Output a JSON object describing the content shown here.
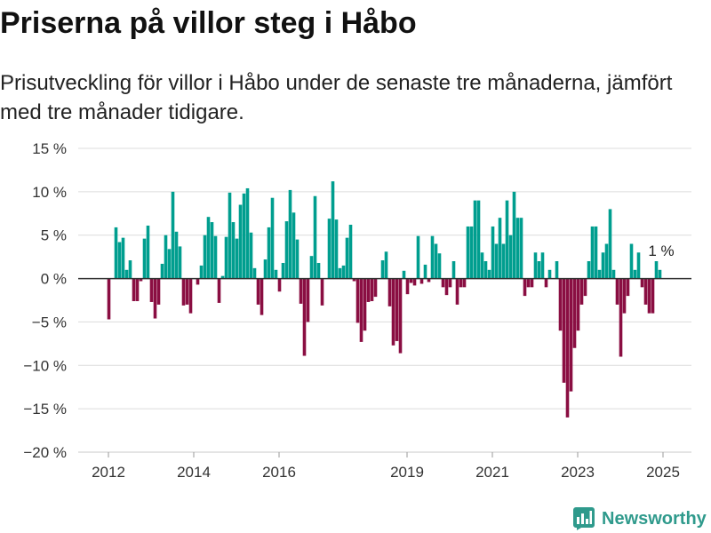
{
  "chart_data": {
    "type": "bar",
    "title": "Priserna på villor steg i Håbo",
    "subtitle": "Prisutveckling för villor i Håbo under de senaste tre månaderna, jämfört med tre månader tidigare.",
    "ylim": [
      -20,
      15
    ],
    "y_tick_values": [
      15,
      10,
      5,
      0,
      -5,
      -10,
      -15,
      -20
    ],
    "y_ticks": [
      "15 %",
      "10 %",
      "5 %",
      "0 %",
      "−5 %",
      "−10 %",
      "−15 %",
      "−20 %"
    ],
    "x_ticks": [
      "2012",
      "2014",
      "2016",
      "2019",
      "2021",
      "2023",
      "2025"
    ],
    "grid": true,
    "colors": {
      "positive": "#009e8f",
      "negative": "#8a0e42"
    },
    "x": [
      "2012-01",
      "2012-02",
      "2012-03",
      "2012-04",
      "2012-05",
      "2012-06",
      "2012-07",
      "2012-08",
      "2012-09",
      "2012-10",
      "2012-11",
      "2012-12",
      "2013-01",
      "2013-02",
      "2013-03",
      "2013-04",
      "2013-05",
      "2013-06",
      "2013-07",
      "2013-08",
      "2013-09",
      "2013-10",
      "2013-11",
      "2013-12",
      "2014-01",
      "2014-02",
      "2014-03",
      "2014-04",
      "2014-05",
      "2014-06",
      "2014-07",
      "2014-08",
      "2014-09",
      "2014-10",
      "2014-11",
      "2014-12",
      "2015-01",
      "2015-02",
      "2015-03",
      "2015-04",
      "2015-05",
      "2015-06",
      "2015-07",
      "2015-08",
      "2015-09",
      "2015-10",
      "2015-11",
      "2015-12",
      "2016-01",
      "2016-02",
      "2016-03",
      "2016-04",
      "2016-05",
      "2016-06",
      "2016-07",
      "2016-08",
      "2016-09",
      "2016-10",
      "2016-11",
      "2016-12",
      "2017-01",
      "2017-02",
      "2017-03",
      "2017-04",
      "2017-05",
      "2017-06",
      "2017-07",
      "2017-08",
      "2017-09",
      "2017-10",
      "2017-11",
      "2017-12",
      "2018-01",
      "2018-02",
      "2018-03",
      "2018-04",
      "2018-05",
      "2018-06",
      "2018-07",
      "2018-08",
      "2018-09",
      "2018-10",
      "2018-11",
      "2018-12",
      "2019-01",
      "2019-02",
      "2019-03",
      "2019-04",
      "2019-05",
      "2019-06",
      "2019-07",
      "2019-08",
      "2019-09",
      "2019-10",
      "2019-11",
      "2019-12",
      "2020-01",
      "2020-02",
      "2020-03",
      "2020-04",
      "2020-05",
      "2020-06",
      "2020-07",
      "2020-08",
      "2020-09",
      "2020-10",
      "2020-11",
      "2020-12",
      "2021-01",
      "2021-02",
      "2021-03",
      "2021-04",
      "2021-05",
      "2021-06",
      "2021-07",
      "2021-08",
      "2021-09",
      "2021-10",
      "2021-11",
      "2021-12",
      "2022-01",
      "2022-02",
      "2022-03",
      "2022-04",
      "2022-05",
      "2022-06",
      "2022-07",
      "2022-08",
      "2022-09",
      "2022-10",
      "2022-11",
      "2022-12",
      "2023-01",
      "2023-02",
      "2023-03",
      "2023-04",
      "2023-05",
      "2023-06",
      "2023-07",
      "2023-08",
      "2023-09",
      "2023-10",
      "2023-11",
      "2023-12",
      "2024-01",
      "2024-02",
      "2024-03",
      "2024-04",
      "2024-05",
      "2024-06",
      "2024-07",
      "2024-08",
      "2024-09",
      "2024-10",
      "2024-11",
      "2024-12"
    ],
    "values": [
      -4.7,
      0,
      5.9,
      4.2,
      4.7,
      1.0,
      2.1,
      -2.6,
      -2.6,
      -0.3,
      4.6,
      6.1,
      -2.7,
      -4.6,
      -3.0,
      1.7,
      5.0,
      3.4,
      10.0,
      5.4,
      3.7,
      -3.1,
      -3.0,
      -4.0,
      0,
      -0.7,
      1.5,
      5.0,
      7.1,
      6.5,
      4.9,
      -2.8,
      0.3,
      4.8,
      9.9,
      6.5,
      4.6,
      8.5,
      9.8,
      10.4,
      5.3,
      1.2,
      -3.0,
      -4.2,
      2.2,
      5.9,
      9.3,
      1.0,
      -1.5,
      1.8,
      6.6,
      10.2,
      7.6,
      4.5,
      -2.9,
      -8.9,
      -5.0,
      2.6,
      9.5,
      1.8,
      -3.1,
      0,
      6.9,
      11.2,
      6.8,
      1.2,
      1.5,
      4.7,
      6.2,
      -0.3,
      -5.1,
      -7.3,
      -6.0,
      -2.7,
      -2.6,
      -2.1,
      0,
      2.1,
      3.1,
      -3.2,
      -7.7,
      -7.2,
      -8.6,
      0.9,
      -1.8,
      -0.5,
      -0.8,
      4.9,
      -0.6,
      1.6,
      -0.4,
      4.9,
      4.0,
      2.9,
      -1.0,
      -1.9,
      -1,
      2,
      -3,
      -1,
      -1,
      6,
      6,
      9,
      9,
      3,
      2,
      1,
      6,
      4,
      7,
      4,
      9,
      5,
      10,
      7,
      7,
      -2,
      -1,
      -1,
      3,
      2,
      3,
      -1,
      1,
      0,
      2,
      -6,
      -12,
      -16,
      -13,
      -8,
      -6,
      -3,
      -2,
      2,
      6,
      6,
      1,
      3,
      4,
      8,
      1,
      -3,
      -9,
      -4,
      -2,
      4,
      1,
      3,
      -1,
      -3,
      -4,
      -4,
      2,
      1
    ],
    "annotations": [
      {
        "x": "2024-12",
        "y": 1,
        "text": "1 %"
      }
    ]
  },
  "brand": {
    "name": "Newsworthy",
    "icon": "newsworthy-logo-icon",
    "color": "#2f9a8c"
  }
}
